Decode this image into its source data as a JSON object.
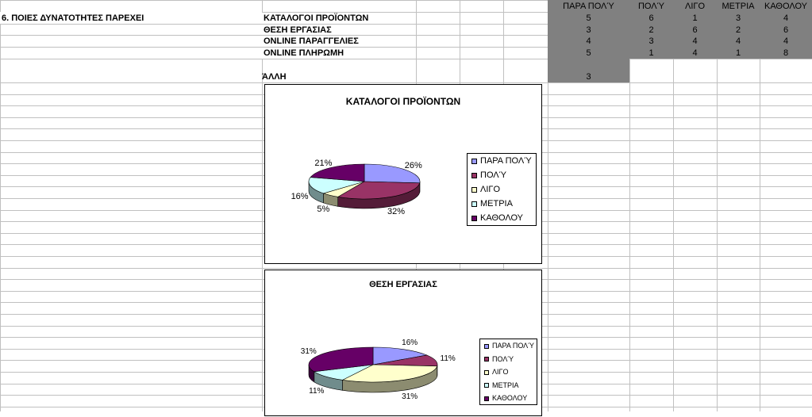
{
  "sheet": {
    "question_label": "6. ΠΟΙΕΣ ΔΥΝΑΤΟΤΗΤΕΣ ΠΑΡΕΧΕΙ",
    "headers": [
      "ΠΑΡΑ ΠΟΛΎ",
      "ΠΟΛΎ",
      "ΛΙΓΟ",
      "ΜΕΤΡΙΑ",
      "ΚΑΘΟΛΟΥ"
    ],
    "rows": [
      {
        "label": "ΚΑΤΑΛΟΓΟΙ ΠΡΟΪΟΝΤΩΝ",
        "values": [
          "5",
          "6",
          "1",
          "3",
          "4"
        ]
      },
      {
        "label": "ΘΕΣΗ ΕΡΓΑΣΙΑΣ",
        "values": [
          "3",
          "2",
          "6",
          "2",
          "6"
        ]
      },
      {
        "label": "ONLINE ΠΑΡΑΓΓΕΛΙΕΣ",
        "values": [
          "4",
          "3",
          "4",
          "4",
          "4"
        ]
      },
      {
        "label": "ONLINE ΠΛΗΡΩΜΗ",
        "values": [
          "5",
          "1",
          "4",
          "1",
          "8"
        ]
      }
    ],
    "other": {
      "label": "ΆΛΛΗ",
      "value": "3"
    }
  },
  "colors": {
    "header_fill": "#808080",
    "grid_line": "#c0c0c0",
    "slices": [
      "#9999ff",
      "#993366",
      "#ffffcc",
      "#ccffff",
      "#660066"
    ]
  },
  "chart_data": [
    {
      "type": "pie",
      "title": "ΚΑΤΑΛΟΓΟΙ ΠΡΟΪΟΝΤΩΝ",
      "categories": [
        "ΠΑΡΑ ΠΟΛΎ",
        "ΠΟΛΎ",
        "ΛΙΓΟ",
        "ΜΕΤΡΙΑ",
        "ΚΑΘΟΛΟΥ"
      ],
      "values": [
        5,
        6,
        1,
        3,
        4
      ],
      "labels": [
        "26%",
        "32%",
        "5%",
        "16%",
        "21%"
      ],
      "legend": "right"
    },
    {
      "type": "pie",
      "title": "ΘΕΣΗ ΕΡΓΑΣΙΑΣ",
      "categories": [
        "ΠΑΡΑ ΠΟΛΎ",
        "ΠΟΛΎ",
        "ΛΙΓΟ",
        "ΜΕΤΡΙΑ",
        "ΚΑΘΟΛΟΥ"
      ],
      "values": [
        3,
        2,
        6,
        2,
        6
      ],
      "labels": [
        "16%",
        "11%",
        "31%",
        "11%",
        "31%"
      ],
      "legend": "right"
    }
  ]
}
